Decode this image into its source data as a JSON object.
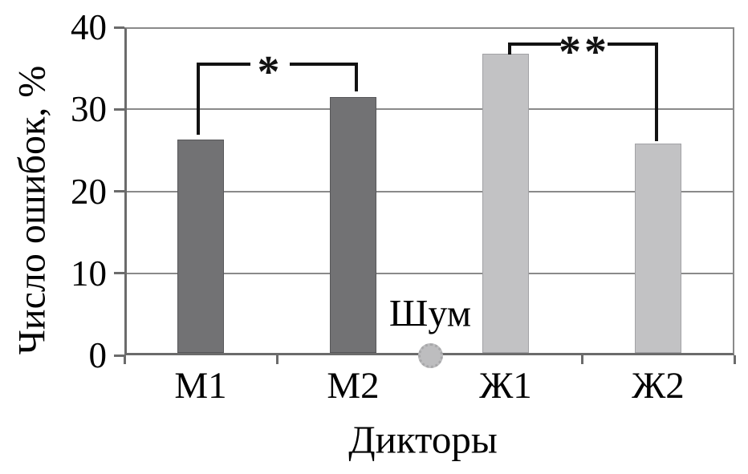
{
  "chart_data": {
    "type": "bar",
    "title": "",
    "categories": [
      "М1",
      "М2",
      "Ж1",
      "Ж2"
    ],
    "values": [
      26.2,
      31.4,
      36.7,
      25.7
    ],
    "xlabel": "Дикторы",
    "ylabel": "Число ошибок, %",
    "ylim": [
      0,
      40
    ],
    "yticks": [
      "40",
      "30",
      "20",
      "10",
      "0"
    ],
    "grid": "horizontal gridlines at every 10 units",
    "legend": "none",
    "colors": {
      "male_bars": "#727274",
      "female_bars": "#c2c2c4",
      "gridline": "#8a8a8a",
      "axis": "#6b6b6b",
      "bracket": "#121212",
      "noise_dot": "#bdbdbf"
    },
    "annotations": {
      "noise": {
        "label": "Шум",
        "marker": "gray dotted circle on x-axis between М2 and Ж1",
        "value": 0
      },
      "significance_brackets": [
        {
          "pair": [
            "М1",
            "М2"
          ],
          "label": "*"
        },
        {
          "pair": [
            "Ж1",
            "Ж2"
          ],
          "label": "**"
        }
      ]
    }
  }
}
